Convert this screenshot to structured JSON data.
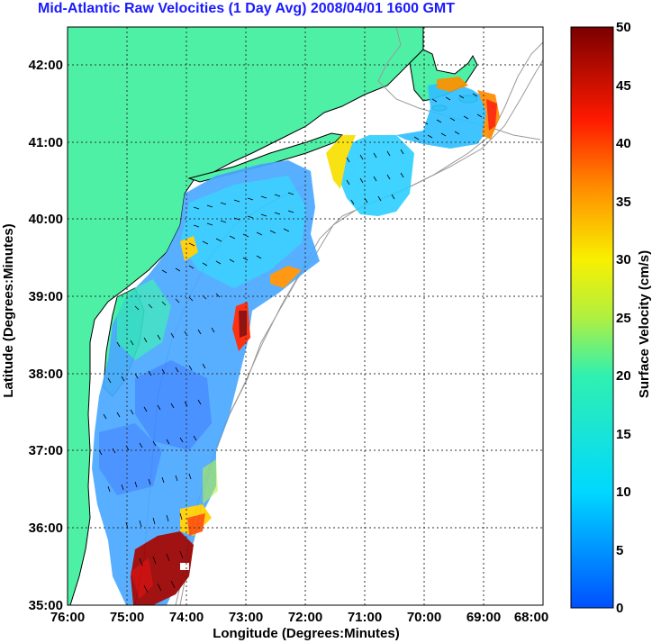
{
  "title": "Mid-Atlantic Raw Velocities (1 Day Avg) 2008/04/01 1600 GMT",
  "x_axis": {
    "label": "Longitude (Degrees:Minutes)",
    "ticks": [
      "76:00",
      "75:00",
      "74:00",
      "73:00",
      "72:00",
      "71:00",
      "70:00",
      "69:00",
      "68:00"
    ]
  },
  "y_axis": {
    "label": "Latitude (Degrees:Minutes)",
    "ticks": [
      "35:00",
      "36:00",
      "37:00",
      "38:00",
      "39:00",
      "40:00",
      "41:00",
      "42:00"
    ]
  },
  "colorbar": {
    "label": "Surface Velocity (cm/s)",
    "ticks": [
      "0",
      "5",
      "10",
      "15",
      "20",
      "25",
      "30",
      "35",
      "40",
      "45",
      "50"
    ],
    "range": [
      0,
      50
    ]
  },
  "colors": {
    "land": "#4ef0a6",
    "title": "#1a1aff",
    "contour": "#9a9a9a",
    "grid": "#333333"
  }
}
